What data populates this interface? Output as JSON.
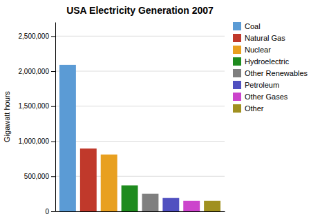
{
  "chart_data": {
    "type": "bar",
    "title": "USA Electricity Generation 2007",
    "ylabel": "Gigawatt hours",
    "categories": [
      "Coal",
      "Natural Gas",
      "Nuclear",
      "Hydroelectric",
      "Other Renewables",
      "Petroleum",
      "Other Gases",
      "Other"
    ],
    "values": [
      2090000,
      896000,
      811000,
      370000,
      250000,
      190000,
      150000,
      150000
    ],
    "colors": [
      "#5B9BD5",
      "#C0392B",
      "#E8A020",
      "#1E8B1E",
      "#7F7F7F",
      "#5050C0",
      "#CC44CC",
      "#A09020"
    ],
    "ylim": [
      0,
      2700000
    ],
    "yticks": [
      0,
      {
        "value": 500000,
        "label": "500,000"
      },
      {
        "value": 1000000,
        "label": "1,000,000"
      },
      {
        "value": 1500000,
        "label": "1,500,000"
      },
      {
        "value": 2000000,
        "label": "2,000,000"
      },
      {
        "value": 2500000,
        "label": "2,500,000"
      }
    ],
    "grid": true,
    "legend": "right",
    "tick_labels": "y"
  }
}
